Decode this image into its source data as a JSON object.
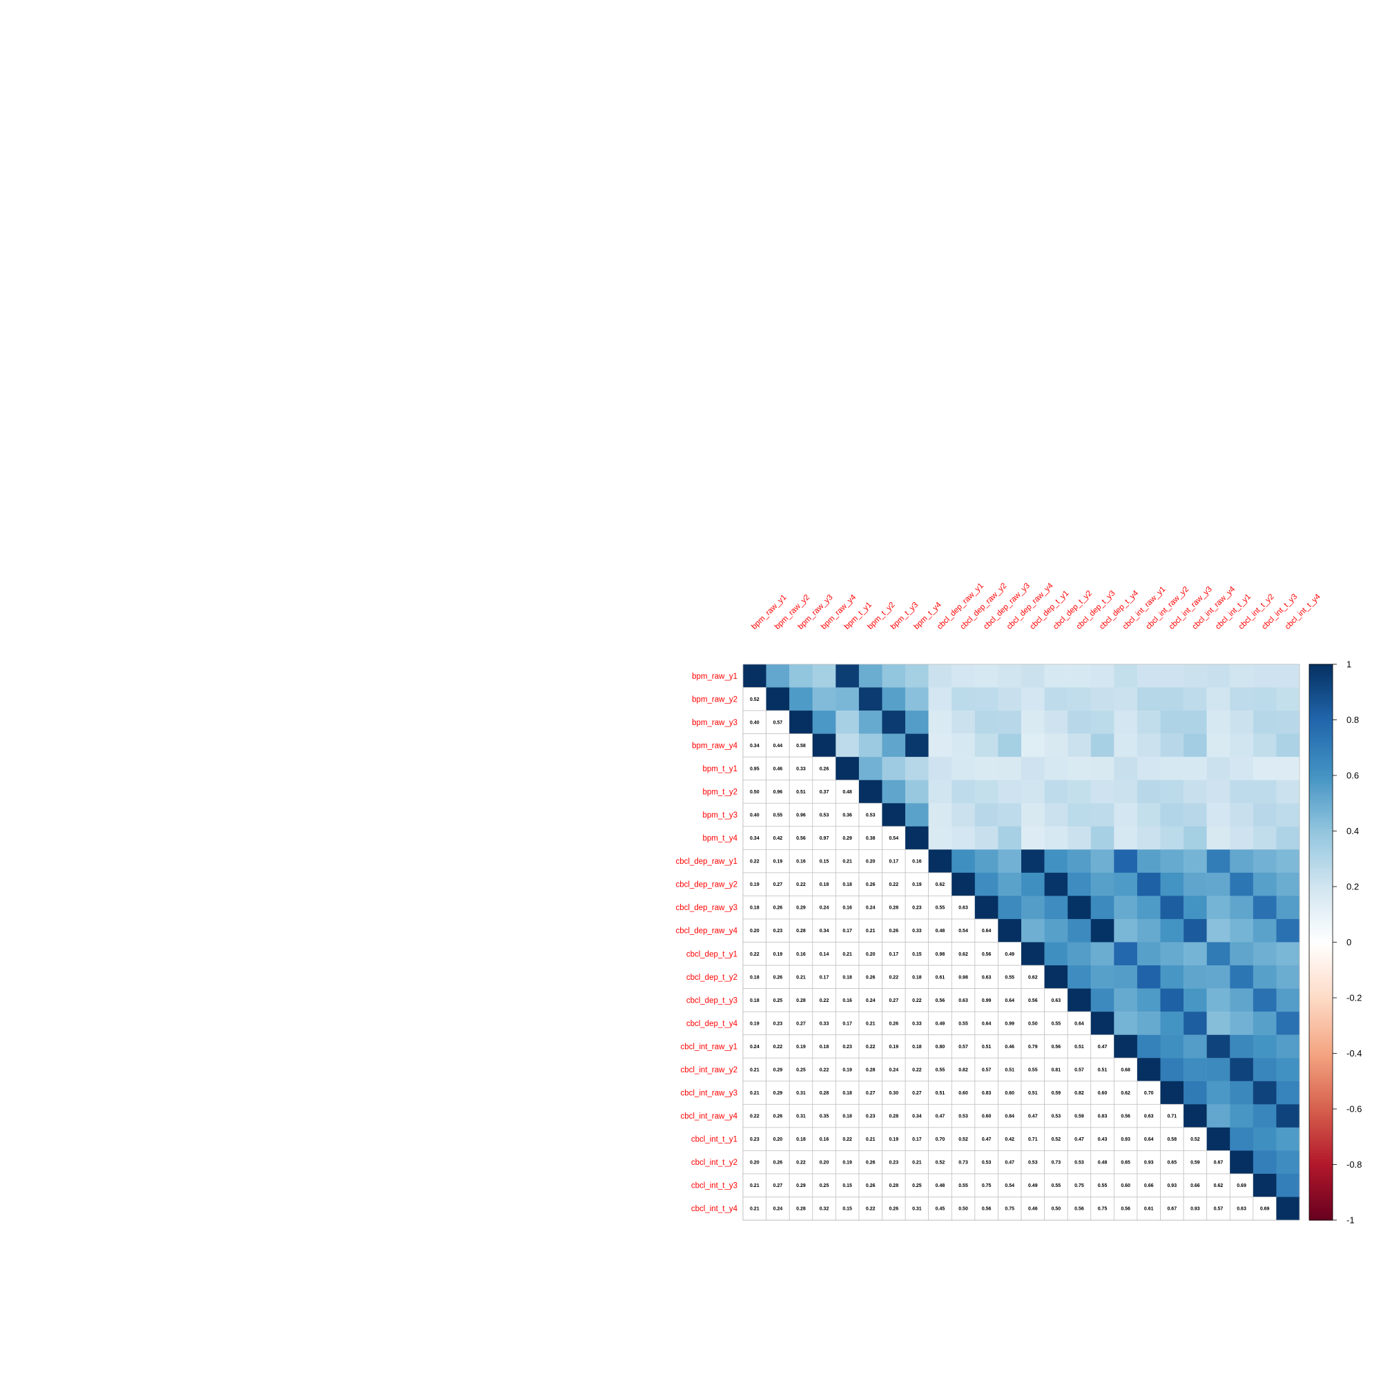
{
  "chart_data": {
    "type": "heatmap",
    "title": "",
    "variables": [
      "bpm_raw_y1",
      "bpm_raw_y2",
      "bpm_raw_y3",
      "bpm_raw_y4",
      "bpm_t_y1",
      "bpm_t_y2",
      "bpm_t_y3",
      "bpm_t_y4",
      "cbcl_dep_raw_y1",
      "cbcl_dep_raw_y2",
      "cbcl_dep_raw_y3",
      "cbcl_dep_raw_y4",
      "cbcl_dep_t_y1",
      "cbcl_dep_t_y2",
      "cbcl_dep_t_y3",
      "cbcl_dep_t_y4",
      "cbcl_int_raw_y1",
      "cbcl_int_raw_y2",
      "cbcl_int_raw_y3",
      "cbcl_int_raw_y4",
      "cbcl_int_t_y1",
      "cbcl_int_t_y2",
      "cbcl_int_t_y3",
      "cbcl_int_t_y4"
    ],
    "lower_triangle_values": [
      [],
      [
        0.52
      ],
      [
        0.4,
        0.57
      ],
      [
        0.34,
        0.44,
        0.58
      ],
      [
        0.95,
        0.46,
        0.33,
        0.26
      ],
      [
        0.5,
        0.96,
        0.51,
        0.37,
        0.48
      ],
      [
        0.4,
        0.55,
        0.96,
        0.53,
        0.36,
        0.53
      ],
      [
        0.34,
        0.42,
        0.56,
        0.97,
        0.29,
        0.38,
        0.54
      ],
      [
        0.22,
        0.19,
        0.16,
        0.15,
        0.21,
        0.2,
        0.17,
        0.16
      ],
      [
        0.19,
        0.27,
        0.22,
        0.18,
        0.18,
        0.26,
        0.22,
        0.19,
        0.62
      ],
      [
        0.18,
        0.26,
        0.29,
        0.24,
        0.16,
        0.24,
        0.28,
        0.23,
        0.55,
        0.63
      ],
      [
        0.2,
        0.23,
        0.28,
        0.34,
        0.17,
        0.21,
        0.26,
        0.33,
        0.48,
        0.54,
        0.64
      ],
      [
        0.22,
        0.19,
        0.16,
        0.14,
        0.21,
        0.2,
        0.17,
        0.15,
        0.98,
        0.62,
        0.56,
        0.49
      ],
      [
        0.18,
        0.26,
        0.21,
        0.17,
        0.18,
        0.26,
        0.22,
        0.18,
        0.61,
        0.98,
        0.63,
        0.55,
        0.62
      ],
      [
        0.18,
        0.25,
        0.28,
        0.22,
        0.16,
        0.24,
        0.27,
        0.22,
        0.56,
        0.63,
        0.99,
        0.64,
        0.56,
        0.63
      ],
      [
        0.19,
        0.23,
        0.27,
        0.33,
        0.17,
        0.21,
        0.26,
        0.33,
        0.49,
        0.55,
        0.64,
        0.99,
        0.5,
        0.55,
        0.64
      ],
      [
        0.24,
        0.22,
        0.19,
        0.18,
        0.23,
        0.22,
        0.19,
        0.18,
        0.8,
        0.57,
        0.51,
        0.46,
        0.79,
        0.56,
        0.51,
        0.47
      ],
      [
        0.21,
        0.29,
        0.25,
        0.22,
        0.19,
        0.28,
        0.24,
        0.22,
        0.55,
        0.82,
        0.57,
        0.51,
        0.55,
        0.81,
        0.57,
        0.51,
        0.68
      ],
      [
        0.21,
        0.29,
        0.31,
        0.28,
        0.18,
        0.27,
        0.3,
        0.27,
        0.51,
        0.6,
        0.83,
        0.6,
        0.51,
        0.59,
        0.82,
        0.6,
        0.62,
        0.7
      ],
      [
        0.22,
        0.26,
        0.31,
        0.35,
        0.18,
        0.23,
        0.28,
        0.34,
        0.47,
        0.53,
        0.6,
        0.84,
        0.47,
        0.53,
        0.59,
        0.83,
        0.56,
        0.63,
        0.71
      ],
      [
        0.23,
        0.2,
        0.18,
        0.16,
        0.22,
        0.21,
        0.19,
        0.17,
        0.7,
        0.52,
        0.47,
        0.42,
        0.71,
        0.52,
        0.47,
        0.43,
        0.93,
        0.64,
        0.58,
        0.52
      ],
      [
        0.2,
        0.26,
        0.22,
        0.2,
        0.19,
        0.26,
        0.23,
        0.21,
        0.52,
        0.73,
        0.53,
        0.47,
        0.53,
        0.73,
        0.53,
        0.48,
        0.65,
        0.93,
        0.65,
        0.59,
        0.67
      ],
      [
        0.21,
        0.27,
        0.29,
        0.25,
        0.15,
        0.26,
        0.28,
        0.25,
        0.48,
        0.55,
        0.75,
        0.54,
        0.49,
        0.55,
        0.75,
        0.55,
        0.6,
        0.66,
        0.93,
        0.66,
        0.62,
        0.69
      ],
      [
        0.21,
        0.24,
        0.28,
        0.32,
        0.15,
        0.22,
        0.26,
        0.31,
        0.45,
        0.5,
        0.56,
        0.75,
        0.46,
        0.5,
        0.56,
        0.75,
        0.56,
        0.61,
        0.67,
        0.93,
        0.57,
        0.63,
        0.69
      ]
    ],
    "upper_triangle": "color only",
    "colorbar": {
      "range": [
        -1,
        1
      ],
      "ticks": [
        "1",
        "0.8",
        "0.6",
        "0.4",
        "0.2",
        "0",
        "-0.2",
        "-0.4",
        "-0.6",
        "-0.8",
        "-1"
      ],
      "low_color": "#67001F",
      "mid_color": "#FFFFFF",
      "high_color": "#053061"
    },
    "label_color": "#FF0000",
    "grid_color": "#BEBEBE",
    "legend_position": "right"
  }
}
